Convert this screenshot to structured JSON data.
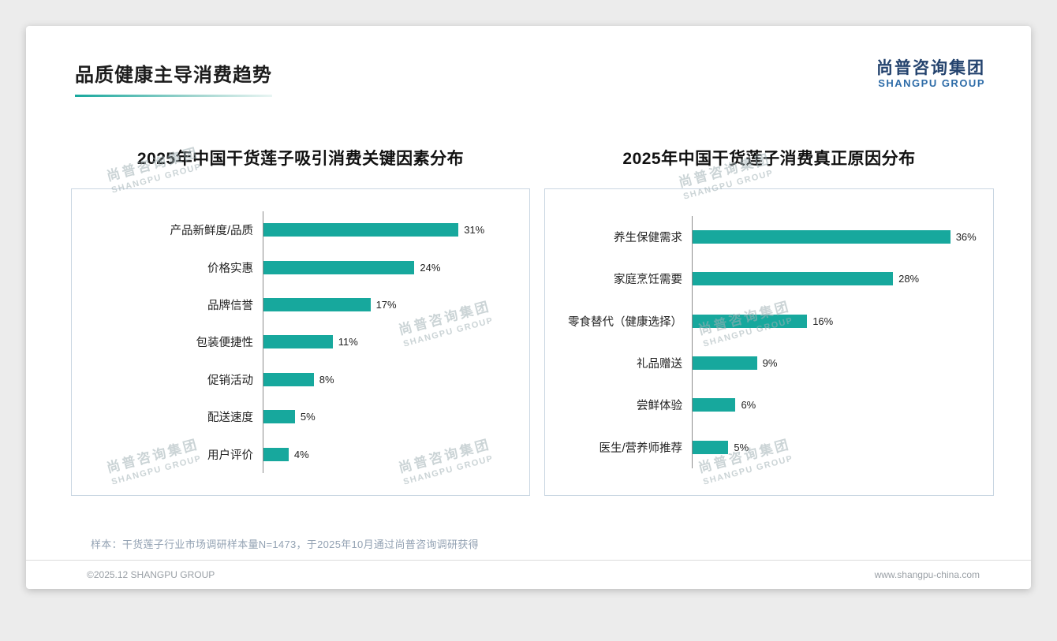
{
  "page": {
    "title": "品质健康主导消费趋势",
    "logo": {
      "cn": "尚普咨询集团",
      "en": "SHANGPU GROUP"
    },
    "note": "样本：干货莲子行业市场调研样本量N=1473，于2025年10月通过尚普咨询调研获得",
    "footer_left": "©2025.12 SHANGPU GROUP",
    "footer_right": "www.shangpu-china.com"
  },
  "watermark": {
    "line1": "尚普咨询集团",
    "line2": "SHANGPU GROUP"
  },
  "colors": {
    "bar": "#17a89d",
    "logo_dark": "#24436e",
    "logo_blue": "#2e6ca8",
    "border": "#c9d6e2"
  },
  "chart_data": [
    {
      "type": "bar",
      "orientation": "horizontal",
      "title": "2025年中国干货莲子吸引消费关键因素分布",
      "categories": [
        "产品新鲜度/品质",
        "价格实惠",
        "品牌信誉",
        "包装便捷性",
        "促销活动",
        "配送速度",
        "用户评价"
      ],
      "values": [
        31,
        24,
        17,
        11,
        8,
        5,
        4
      ],
      "unit": "%",
      "xlim": [
        0,
        40
      ],
      "grid": false,
      "legend": "none"
    },
    {
      "type": "bar",
      "orientation": "horizontal",
      "title": "2025年中国干货莲子消费真正原因分布",
      "categories": [
        "养生保健需求",
        "家庭烹饪需要",
        "零食替代（健康选择）",
        "礼品赠送",
        "尝鲜体验",
        "医生/营养师推荐"
      ],
      "values": [
        36,
        28,
        16,
        9,
        6,
        5
      ],
      "unit": "%",
      "xlim": [
        0,
        40
      ],
      "grid": false,
      "legend": "none"
    }
  ]
}
